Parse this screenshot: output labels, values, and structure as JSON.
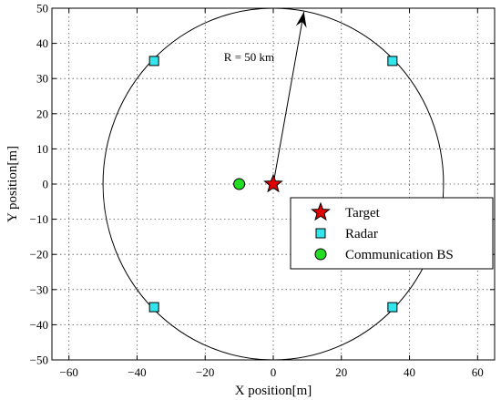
{
  "chart_data": {
    "type": "scatter",
    "title": "",
    "xlabel": "X position[m]",
    "ylabel": "Y position[m]",
    "xlim": [
      -65,
      65
    ],
    "ylim": [
      -50,
      50
    ],
    "xticks": [
      -60,
      -40,
      -20,
      0,
      20,
      40,
      60
    ],
    "yticks": [
      -50,
      -40,
      -30,
      -20,
      -10,
      0,
      10,
      20,
      30,
      40,
      50
    ],
    "grid": true,
    "legend_position": "lower-right",
    "circle": {
      "center": [
        0,
        0
      ],
      "radius": 50,
      "color": "#000000"
    },
    "arrow": {
      "from": [
        0,
        0
      ],
      "to": [
        9,
        49
      ]
    },
    "annotation": {
      "text": "R = 50 km",
      "x": -14.5,
      "y": 35
    },
    "series": [
      {
        "name": "Target",
        "marker": "star",
        "color": "#e00000",
        "points": [
          [
            0,
            0
          ]
        ]
      },
      {
        "name": "Radar",
        "marker": "square",
        "color": "#33e6ee",
        "points": [
          [
            -35,
            35
          ],
          [
            35,
            35
          ],
          [
            -35,
            -35
          ],
          [
            35,
            -35
          ]
        ]
      },
      {
        "name": "Communication BS",
        "marker": "circle",
        "color": "#22dd22",
        "points": [
          [
            -10,
            0
          ]
        ]
      }
    ]
  }
}
